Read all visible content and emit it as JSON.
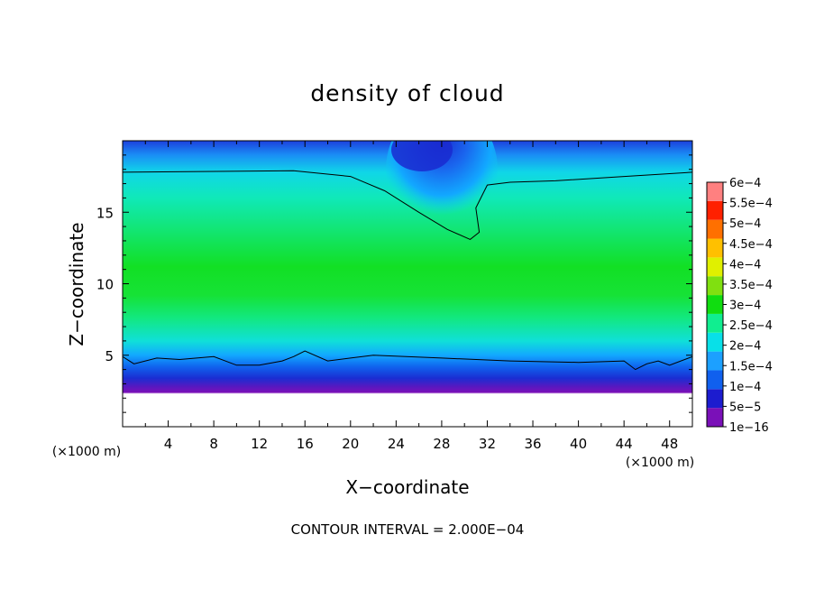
{
  "chart_data": {
    "type": "heatmap",
    "title": "density of cloud",
    "xlabel": "X−coordinate",
    "ylabel": "Z−coordinate",
    "x_unit": "(×1000 m)",
    "y_unit": "(×1000 m)",
    "xlim": [
      0,
      50
    ],
    "ylim": [
      0,
      20
    ],
    "x_ticks": [
      4,
      8,
      12,
      16,
      20,
      24,
      28,
      32,
      36,
      40,
      44,
      48
    ],
    "x_tick_labels": [
      "4",
      "8",
      "12",
      "16",
      "20",
      "24",
      "28",
      "32",
      "36",
      "40",
      "44",
      "48"
    ],
    "y_ticks": [
      5,
      10,
      15
    ],
    "y_tick_labels": [
      "5",
      "10",
      "15"
    ],
    "colorbar": {
      "levels": [
        1e-16,
        5e-05,
        0.0001,
        0.00015,
        0.0002,
        0.00025,
        0.0003,
        0.00035,
        0.0004,
        0.00045,
        0.0005,
        0.00055,
        0.0006
      ],
      "labels": [
        "1e−16",
        "5e−5",
        "1e−4",
        "1.5e−4",
        "2e−4",
        "2.5e−4",
        "3e−4",
        "3.5e−4",
        "4e−4",
        "4.5e−4",
        "5e−4",
        "5.5e−4",
        "6e−4"
      ],
      "colors": [
        "#7a10b8",
        "#1c1ccf",
        "#1060ee",
        "#1ca0ff",
        "#08e0e8",
        "#10ee90",
        "#10dd10",
        "#80e010",
        "#e0f000",
        "#ffc000",
        "#ff7000",
        "#ff2000",
        "#ff8080"
      ]
    },
    "contour_interval_text": "CONTOUR INTERVAL = 2.000E−04",
    "contour_level": 0.0002,
    "upper_contour": [
      [
        0,
        17.8
      ],
      [
        15,
        17.9
      ],
      [
        20,
        17.5
      ],
      [
        23,
        16.5
      ],
      [
        26,
        15
      ],
      [
        28.5,
        13.8
      ],
      [
        30.5,
        13.1
      ],
      [
        31.3,
        13.6
      ],
      [
        31,
        15.3
      ],
      [
        32,
        16.9
      ],
      [
        34,
        17.1
      ],
      [
        38,
        17.2
      ],
      [
        44,
        17.5
      ],
      [
        50,
        17.8
      ]
    ],
    "lower_contour": [
      [
        0,
        4.9
      ],
      [
        1,
        4.4
      ],
      [
        3,
        4.8
      ],
      [
        5,
        4.7
      ],
      [
        8,
        4.9
      ],
      [
        10,
        4.3
      ],
      [
        12,
        4.3
      ],
      [
        14,
        4.6
      ],
      [
        15,
        4.9
      ],
      [
        16,
        5.3
      ],
      [
        18,
        4.6
      ],
      [
        20,
        4.8
      ],
      [
        22,
        5.0
      ],
      [
        28,
        4.8
      ],
      [
        34,
        4.6
      ],
      [
        40,
        4.5
      ],
      [
        44,
        4.6
      ],
      [
        45,
        4.0
      ],
      [
        46,
        4.4
      ],
      [
        47,
        4.6
      ],
      [
        48,
        4.3
      ],
      [
        50,
        4.9
      ]
    ]
  }
}
